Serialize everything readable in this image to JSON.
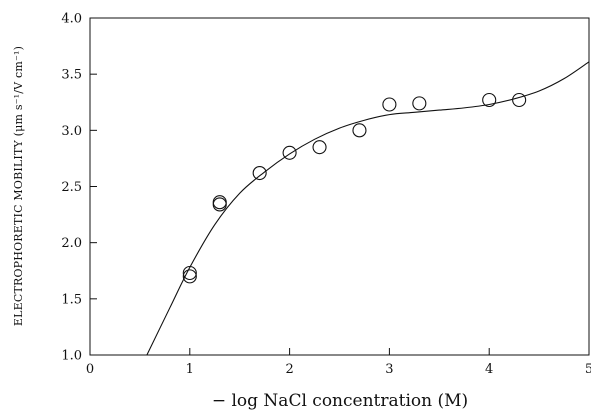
{
  "chart_data": {
    "type": "scatter",
    "title": "",
    "xlabel": "− log NaCl concentration (M)",
    "ylabel": "ELECTROPHORETIC MOBILITY (μm s⁻¹/V cm⁻¹)",
    "xlim": [
      0,
      5
    ],
    "ylim": [
      1.0,
      4.0
    ],
    "x_ticks": [
      "0",
      "1",
      "2",
      "3",
      "4",
      "5"
    ],
    "y_ticks": [
      "1.0",
      "1.5",
      "2.0",
      "2.5",
      "3.0",
      "3.5",
      "4.0"
    ],
    "grid": false,
    "legend": "none",
    "series": [
      {
        "kind": "points",
        "marker": "open-circle",
        "points": [
          {
            "x": 1.0,
            "y": 1.7
          },
          {
            "x": 1.0,
            "y": 1.73
          },
          {
            "x": 1.3,
            "y": 2.34
          },
          {
            "x": 1.3,
            "y": 2.36
          },
          {
            "x": 1.7,
            "y": 2.62
          },
          {
            "x": 2.0,
            "y": 2.8
          },
          {
            "x": 2.3,
            "y": 2.85
          },
          {
            "x": 2.7,
            "y": 3.0
          },
          {
            "x": 3.0,
            "y": 3.23
          },
          {
            "x": 3.3,
            "y": 3.24
          },
          {
            "x": 4.0,
            "y": 3.27
          },
          {
            "x": 4.3,
            "y": 3.27
          }
        ]
      },
      {
        "kind": "curve",
        "style": "solid",
        "points": [
          {
            "x": 0.57,
            "y": 1.0
          },
          {
            "x": 0.8,
            "y": 1.42
          },
          {
            "x": 1.0,
            "y": 1.78
          },
          {
            "x": 1.25,
            "y": 2.16
          },
          {
            "x": 1.5,
            "y": 2.44
          },
          {
            "x": 1.75,
            "y": 2.63
          },
          {
            "x": 2.0,
            "y": 2.79
          },
          {
            "x": 2.25,
            "y": 2.92
          },
          {
            "x": 2.5,
            "y": 3.02
          },
          {
            "x": 2.75,
            "y": 3.09
          },
          {
            "x": 3.0,
            "y": 3.14
          },
          {
            "x": 3.25,
            "y": 3.16
          },
          {
            "x": 3.5,
            "y": 3.18
          },
          {
            "x": 3.75,
            "y": 3.2
          },
          {
            "x": 4.0,
            "y": 3.23
          },
          {
            "x": 4.25,
            "y": 3.28
          },
          {
            "x": 4.5,
            "y": 3.35
          },
          {
            "x": 4.75,
            "y": 3.46
          },
          {
            "x": 5.0,
            "y": 3.61
          }
        ]
      }
    ]
  }
}
